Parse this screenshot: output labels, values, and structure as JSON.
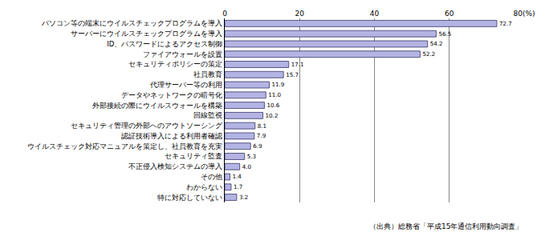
{
  "chart_data": {
    "type": "bar",
    "orientation": "horizontal",
    "categories": [
      "パソコン等の端末にウイルスチェックプログラムを導入",
      "サーバーにウイルスチェックプログラムを導入",
      "ID、パスワードによるアクセス制御",
      "ファイアウォールを設置",
      "セキュリティポリシーの策定",
      "社員教育",
      "代理サーバー等の利用",
      "データやネットワークの暗号化",
      "外部接続の際にウイルスウォールを構築",
      "回線監視",
      "セキュリティ管理の外部へのアウトソーシング",
      "認証技術導入による利用者確認",
      "ウイルスチェック対応マニュアルを策定し、社員教育を充実",
      "セキュリティ監査",
      "不正侵入検知システムの導入",
      "その他",
      "わからない",
      "特に対応していない"
    ],
    "values": [
      72.7,
      56.5,
      54.2,
      52.2,
      17.1,
      15.7,
      11.9,
      11.0,
      10.6,
      10.2,
      8.1,
      7.9,
      6.9,
      5.3,
      4.0,
      1.4,
      1.7,
      3.2
    ],
    "value_labels": [
      "72.7",
      "56.5",
      "54.2",
      "52.2",
      "17.1",
      "15.7",
      "11.9",
      "11.0",
      "10.6",
      "10.2",
      "8.1",
      "7.9",
      "6.9",
      "5.3",
      "4.0",
      "1.4",
      "1.7",
      "3.2"
    ],
    "data_labels": true,
    "color": "#b4b4e4",
    "xlim": [
      0,
      80
    ],
    "xticks": [
      0,
      20,
      40,
      60,
      {
        "value": 80,
        "label": "80(%)"
      }
    ],
    "grid": true,
    "annotations": [
      "（出典）総務省「平成15年通信利用動向調査」"
    ]
  }
}
